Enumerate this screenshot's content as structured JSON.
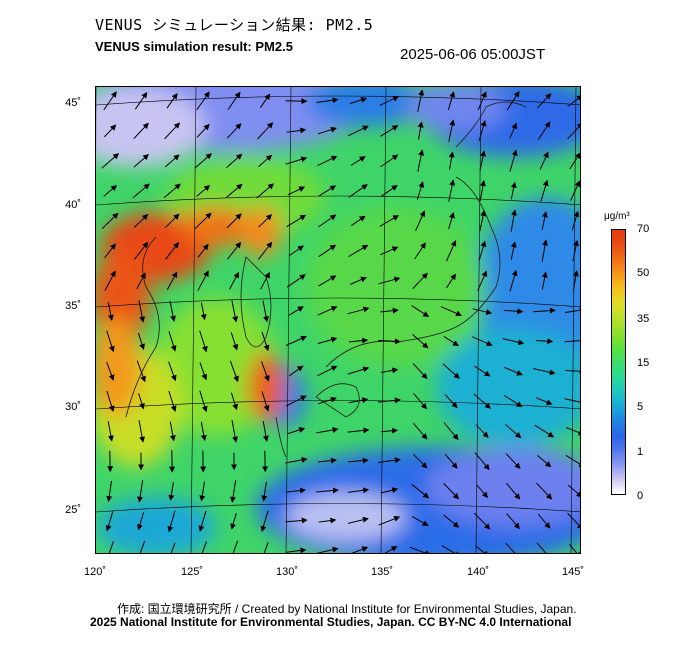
{
  "title_jp": "VENUS シミュレーション結果: PM2.5",
  "title_en": "VENUS simulation result: PM2.5",
  "timestamp": "2025-06-06 05:00JST",
  "lat_labels": [
    "45˚",
    "40˚",
    "35˚",
    "30˚",
    "25˚"
  ],
  "lon_labels": [
    "120˚",
    "125˚",
    "130˚",
    "135˚",
    "140˚",
    "145˚"
  ],
  "legend": {
    "unit": "μg/m³",
    "ticks": [
      "70",
      "50",
      "35",
      "15",
      "5",
      "1",
      "0"
    ]
  },
  "credit_line1": "作成: 国立環境研究所 / Created by National Institute for Environmental Studies, Japan.",
  "credit_line2": "2025 National Institute for Environmental Studies, Japan. CC BY-NC 4.0 International",
  "colors": {
    "low": "#3b6fe8",
    "mid": "#2fd87a",
    "high": "#e23a10"
  }
}
